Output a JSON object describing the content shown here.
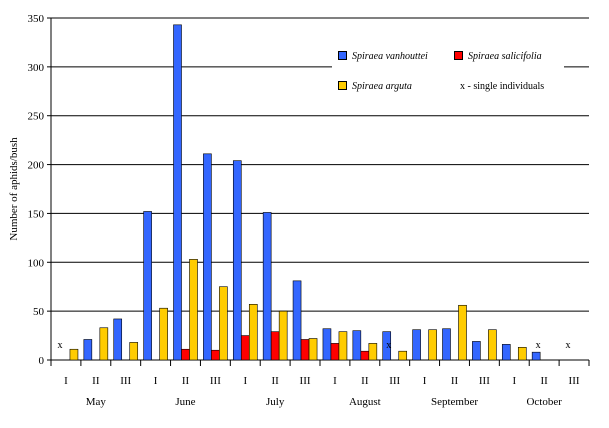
{
  "chart_data": {
    "type": "bar",
    "ylabel": "Number of aphids/bush",
    "ylim": [
      0,
      350
    ],
    "yticks": [
      "0",
      "50",
      "100",
      "150",
      "200",
      "250",
      "300",
      "350"
    ],
    "categories": [
      "I",
      "II",
      "III",
      "I",
      "II",
      "III",
      "I",
      "II",
      "III",
      "I",
      "II",
      "III",
      "I",
      "II",
      "III",
      "I",
      "II",
      "III"
    ],
    "months": [
      "May",
      "June",
      "July",
      "August",
      "September",
      "October"
    ],
    "grid": true,
    "legend_position": "top-right",
    "series": [
      {
        "name": "Spiraea vanhouttei",
        "color": "#3366ff",
        "values": [
          0,
          21,
          42,
          152,
          343,
          211,
          204,
          151,
          81,
          32,
          30,
          29,
          31,
          32,
          19,
          16,
          8,
          0
        ]
      },
      {
        "name": "Spiraea salicifolia",
        "color": "#ff0000",
        "values": [
          0,
          0,
          0,
          0,
          11,
          10,
          25,
          29,
          21,
          17,
          9,
          0,
          0,
          0,
          0,
          0,
          0,
          0
        ]
      },
      {
        "name": "Spiraea arguta",
        "color": "#ffcc00",
        "values": [
          11,
          33,
          18,
          53,
          103,
          75,
          57,
          50,
          22,
          29,
          17,
          9,
          31,
          56,
          31,
          13,
          0,
          0
        ]
      }
    ],
    "single_markers": [
      "x",
      "",
      "",
      "",
      "",
      "",
      "",
      "",
      "",
      "",
      "",
      "x",
      "",
      "",
      "",
      "",
      "x",
      "x"
    ],
    "legend_note": "x - single individuals"
  }
}
